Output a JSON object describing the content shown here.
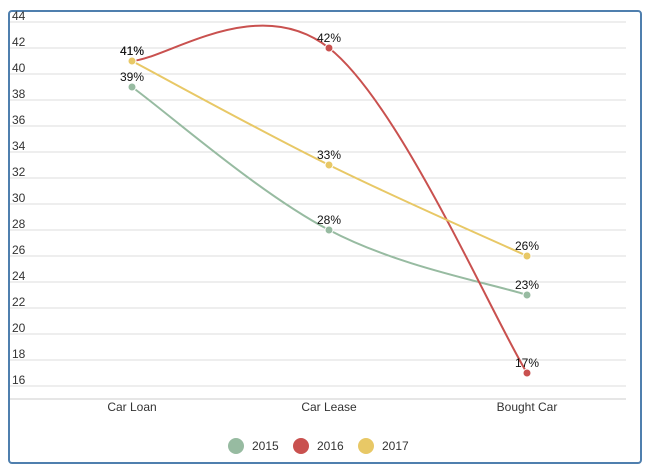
{
  "chart_data": {
    "type": "line",
    "categories": [
      "Car Loan",
      "Car Lease",
      "Bought Car"
    ],
    "series": [
      {
        "name": "2015",
        "values": [
          39,
          28,
          23
        ],
        "color": "#97bba1"
      },
      {
        "name": "2016",
        "values": [
          41,
          42,
          17
        ],
        "color": "#c9514f"
      },
      {
        "name": "2017",
        "values": [
          41,
          33,
          26
        ],
        "color": "#e8c866"
      }
    ],
    "data_label_suffix": "%",
    "ylim": [
      15,
      44
    ],
    "yticks": [
      16,
      18,
      20,
      22,
      24,
      26,
      28,
      30,
      32,
      34,
      36,
      38,
      40,
      42,
      44
    ],
    "grid": true,
    "legend_position": "bottom",
    "title": "",
    "xlabel": "",
    "ylabel": ""
  }
}
